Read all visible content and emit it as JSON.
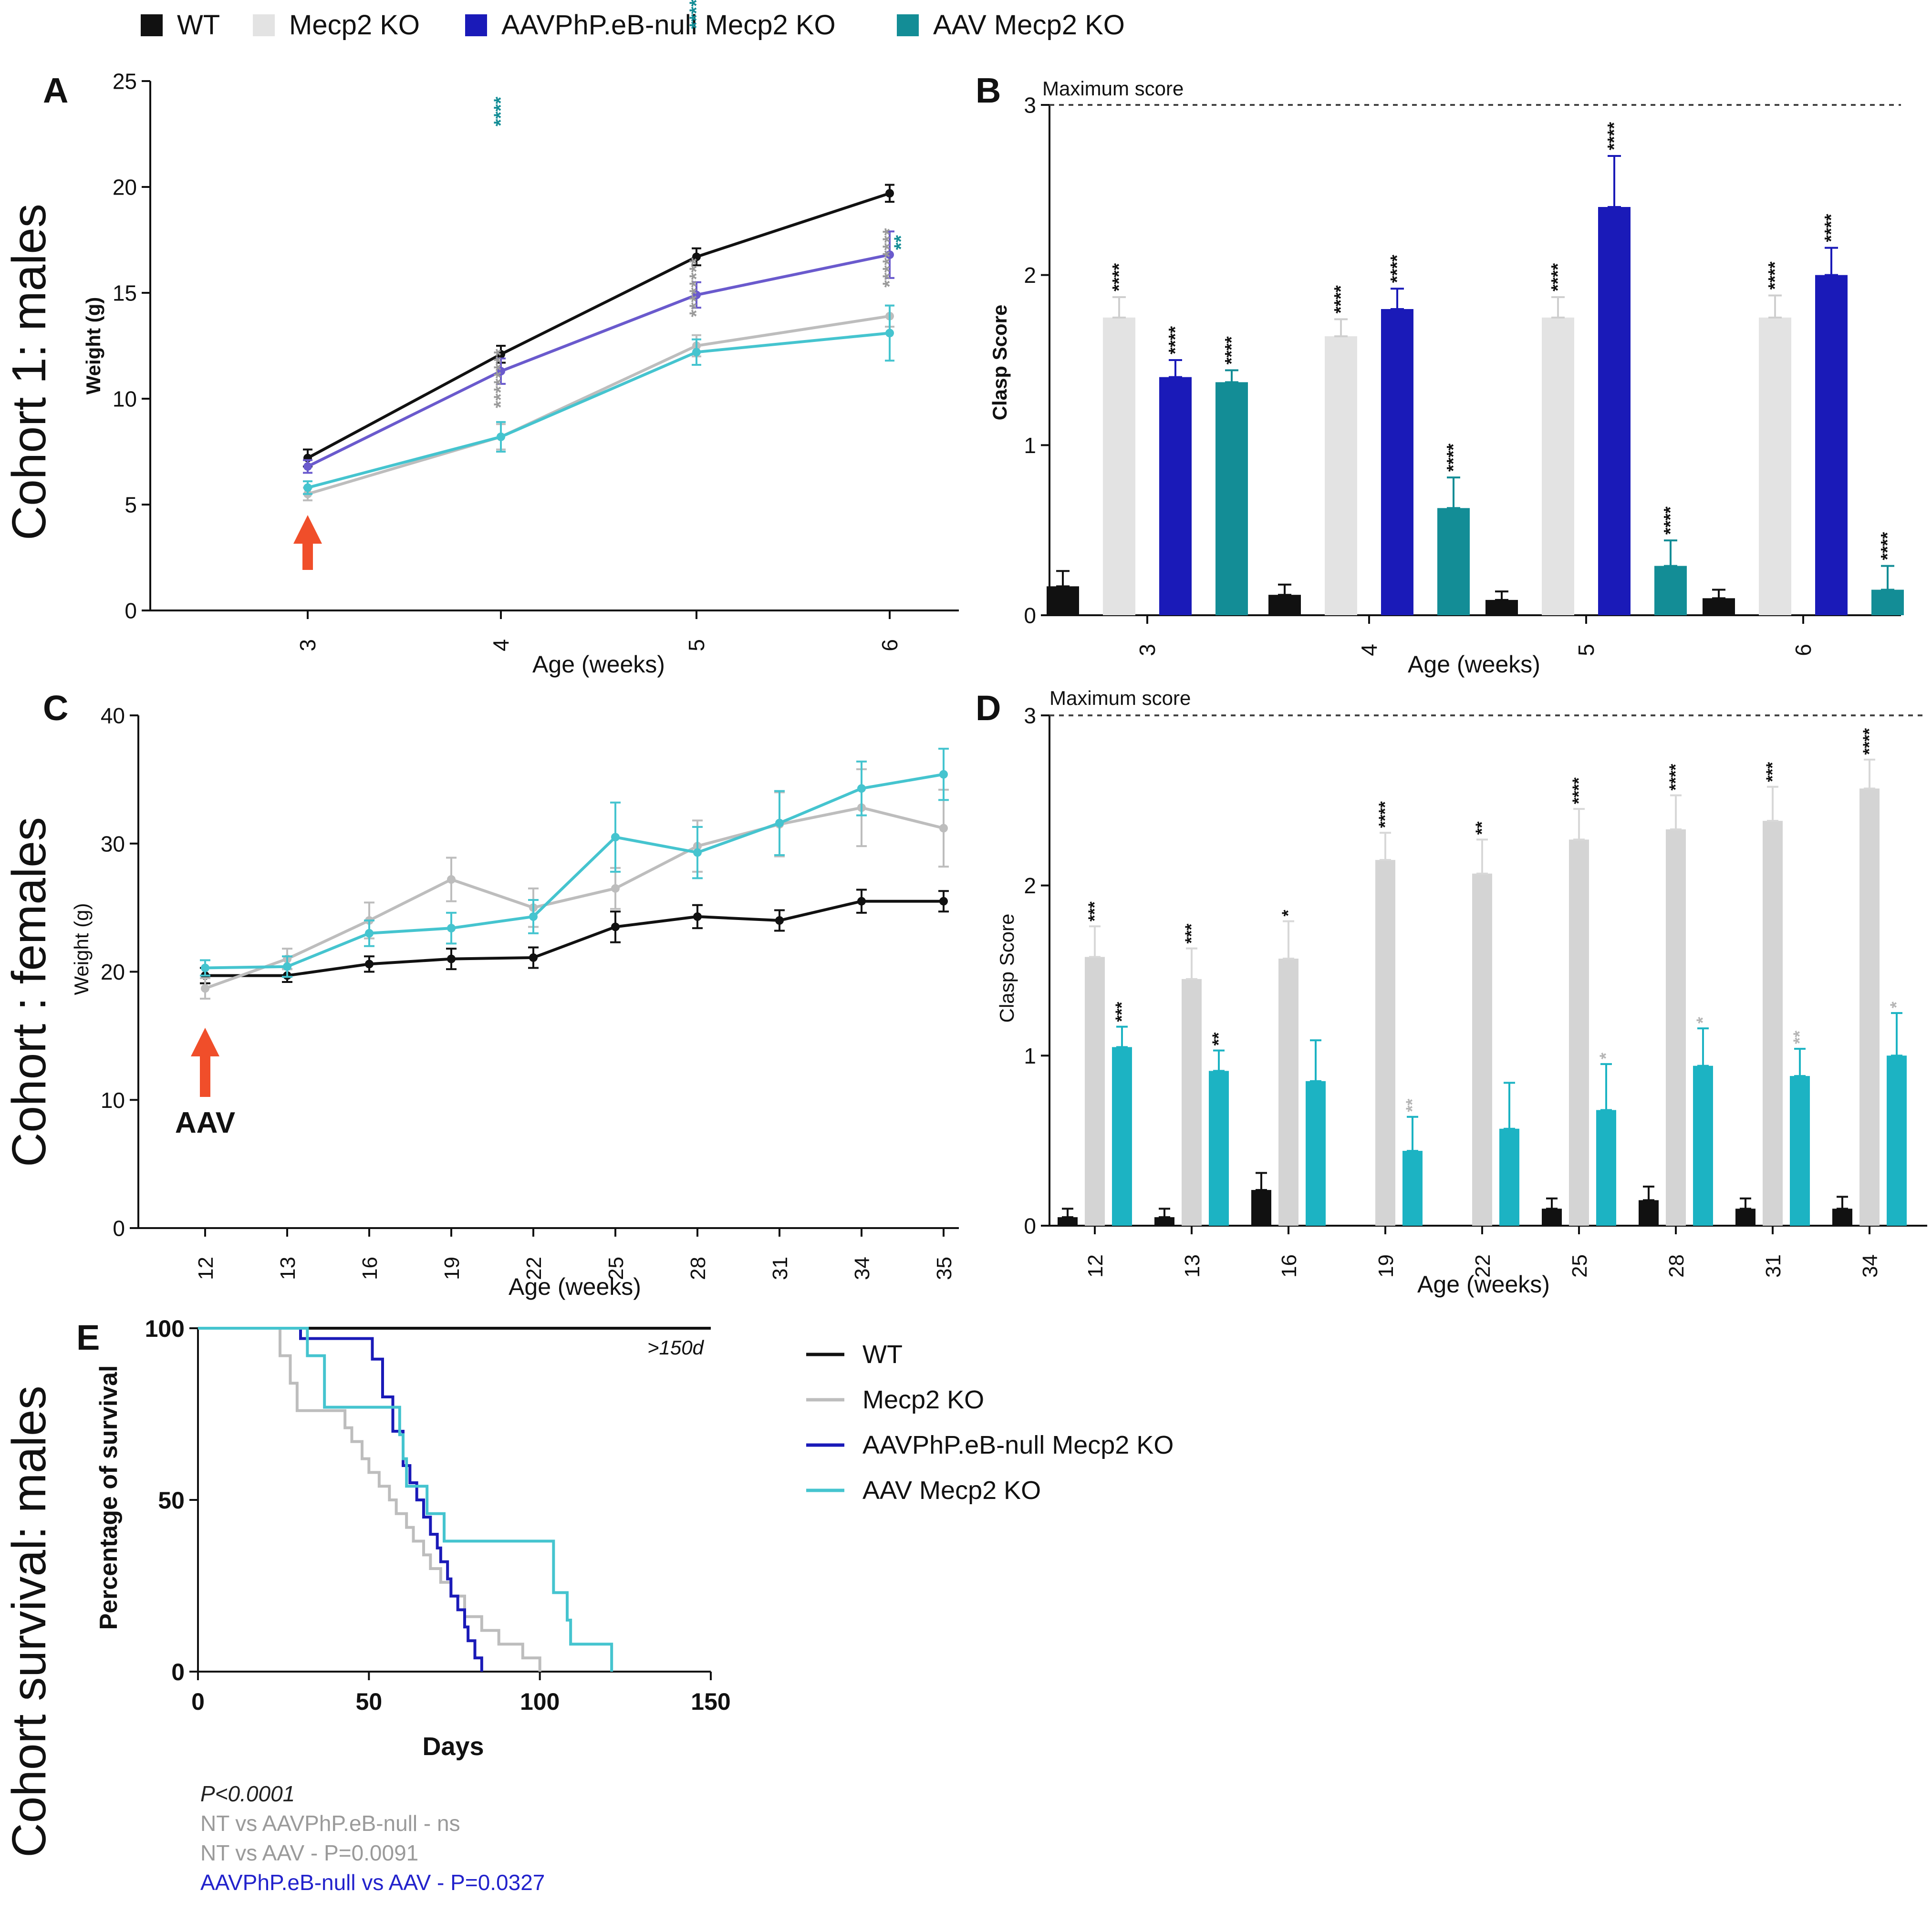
{
  "colors": {
    "wt": "#111111",
    "ko": "#e3e3e3",
    "ko_line": "#bdbdbd",
    "null": "#1a1ab8",
    "null_line": "#6a5acd",
    "aav": "#138d96",
    "aav_line": "#45c4cf",
    "aav_d": "#1cb3c3",
    "arrow": "#f04e2a",
    "gray_text": "#9a9a9a",
    "blue_text": "#2222cc"
  },
  "legend_top": {
    "items": [
      {
        "label": "WT",
        "color_key": "wt"
      },
      {
        "label": "Mecp2 KO",
        "color_key": "ko"
      },
      {
        "label": "AAVPhP.eB-null Mecp2 KO",
        "color_key": "null"
      },
      {
        "label": "AAV Mecp2 KO",
        "color_key": "aav"
      }
    ]
  },
  "row_titles": [
    "Cohort 1: males",
    "Cohort : females",
    "Cohort survival: males"
  ],
  "chart_data": [
    {
      "panel": "A",
      "type": "line",
      "xlabel": "Age (weeks)",
      "ylabel": "Weight (g)",
      "categories": [
        "3",
        "4",
        "5",
        "6"
      ],
      "ylim": [
        0,
        25
      ],
      "yticks": [
        0,
        5,
        10,
        15,
        20,
        25
      ],
      "series": [
        {
          "name": "WT",
          "values": [
            7.2,
            12.1,
            16.7,
            19.7
          ],
          "err": [
            0.4,
            0.4,
            0.4,
            0.4
          ]
        },
        {
          "name": "Mecp2 KO",
          "values": [
            5.5,
            8.2,
            12.5,
            13.9
          ],
          "err": [
            0.3,
            0.6,
            0.5,
            0.5
          ]
        },
        {
          "name": "AAVPhP.eB-null Mecp2 KO",
          "values": [
            6.8,
            11.3,
            14.9,
            16.8
          ],
          "err": [
            0.3,
            0.6,
            0.6,
            1.1
          ]
        },
        {
          "name": "AAV Mecp2 KO",
          "values": [
            5.8,
            8.2,
            12.2,
            13.1
          ],
          "err": [
            0.3,
            0.7,
            0.6,
            1.3
          ]
        }
      ],
      "annotation": "Injection at 3 weeks (arrow)"
    },
    {
      "panel": "B",
      "type": "bar",
      "xlabel": "Age (weeks)",
      "ylabel": "Clasp Score",
      "categories": [
        "3",
        "4",
        "5",
        "6"
      ],
      "ylim": [
        0,
        3
      ],
      "yticks": [
        0,
        1,
        2,
        3
      ],
      "max_label": "Maximum score",
      "series": [
        {
          "name": "WT",
          "values": [
            0.17,
            0.12,
            0.09,
            0.1
          ],
          "err": [
            0.09,
            0.06,
            0.05,
            0.05
          ]
        },
        {
          "name": "Mecp2 KO",
          "values": [
            1.75,
            1.64,
            1.75,
            1.75
          ],
          "err": [
            0.12,
            0.1,
            0.12,
            0.13
          ]
        },
        {
          "name": "AAVPhP.eB-null Mecp2 KO",
          "values": [
            1.4,
            1.8,
            2.4,
            2.0
          ],
          "err": [
            0.1,
            0.12,
            0.3,
            0.16
          ]
        },
        {
          "name": "AAV Mecp2 KO",
          "values": [
            1.37,
            0.63,
            0.29,
            0.15
          ],
          "err": [
            0.07,
            0.18,
            0.15,
            0.14
          ]
        }
      ],
      "stars": [
        [
          "",
          "****",
          "****",
          "****"
        ],
        [
          "",
          "****",
          "****",
          "****"
        ],
        [
          "",
          "****",
          "****",
          "****"
        ],
        [
          "",
          "****",
          "****",
          "****"
        ]
      ]
    },
    {
      "panel": "C",
      "type": "line",
      "xlabel": "Age (weeks)",
      "ylabel": "Weight (g)",
      "categories": [
        "12",
        "13",
        "16",
        "19",
        "22",
        "25",
        "28",
        "31",
        "34",
        "35"
      ],
      "ylim": [
        0,
        40
      ],
      "yticks": [
        0,
        10,
        20,
        30,
        40
      ],
      "series": [
        {
          "name": "WT",
          "values": [
            19.7,
            19.7,
            20.6,
            21.0,
            21.1,
            23.5,
            24.3,
            24.0,
            25.5,
            25.5
          ],
          "err": [
            0.6,
            0.5,
            0.6,
            0.8,
            0.8,
            1.2,
            0.9,
            0.8,
            0.9,
            0.8
          ]
        },
        {
          "name": "Mecp2 KO",
          "values": [
            18.7,
            21.0,
            24.0,
            27.2,
            25.0,
            26.5,
            29.8,
            31.5,
            32.8,
            31.2
          ],
          "err": [
            0.8,
            0.8,
            1.4,
            1.7,
            1.5,
            1.6,
            2.0,
            2.5,
            3.0,
            3.0
          ]
        },
        {
          "name": "AAV Mecp2 KO",
          "values": [
            20.3,
            20.4,
            23.0,
            23.4,
            24.3,
            30.5,
            29.3,
            31.6,
            34.3,
            35.4
          ],
          "err": [
            0.6,
            0.8,
            1.0,
            1.2,
            1.3,
            2.7,
            2.0,
            2.5,
            2.1,
            2.0
          ]
        }
      ],
      "arrow_label": "AAV"
    },
    {
      "panel": "D",
      "type": "bar",
      "xlabel": "Age (weeks)",
      "ylabel": "Clasp Score",
      "categories": [
        "12",
        "13",
        "16",
        "19",
        "22",
        "25",
        "28",
        "31",
        "34"
      ],
      "ylim": [
        0,
        3
      ],
      "yticks": [
        0,
        1,
        2,
        3
      ],
      "max_label": "Maximum score",
      "series": [
        {
          "name": "WT",
          "values": [
            0.05,
            0.05,
            0.21,
            0.0,
            0.0,
            0.1,
            0.15,
            0.1,
            0.1
          ],
          "err": [
            0.05,
            0.05,
            0.1,
            0,
            0,
            0.06,
            0.08,
            0.06,
            0.07
          ]
        },
        {
          "name": "Mecp2 KO",
          "values": [
            1.58,
            1.45,
            1.57,
            2.15,
            2.07,
            2.27,
            2.33,
            2.38,
            2.57
          ],
          "err": [
            0.18,
            0.18,
            0.22,
            0.16,
            0.2,
            0.18,
            0.2,
            0.2,
            0.17
          ]
        },
        {
          "name": "AAV Mecp2 KO",
          "values": [
            1.05,
            0.91,
            0.85,
            0.44,
            0.57,
            0.68,
            0.94,
            0.88,
            1.0
          ],
          "err": [
            0.12,
            0.12,
            0.24,
            0.2,
            0.27,
            0.27,
            0.22,
            0.16,
            0.25
          ]
        }
      ],
      "ko_stars": [
        "***",
        "***",
        "*",
        "****",
        "**",
        "****",
        "****",
        "***",
        "****"
      ],
      "aav_stars": [
        "***",
        "**",
        "",
        "**",
        "",
        "*",
        "*",
        "**",
        "*"
      ]
    },
    {
      "panel": "E",
      "type": "line",
      "xlabel": "Days",
      "ylabel": "Percentage of survival",
      "xlim": [
        0,
        150
      ],
      "ylim": [
        0,
        100
      ],
      "xticks": [
        0,
        50,
        100,
        150
      ],
      "yticks": [
        0,
        50,
        100
      ],
      "wt_label": ">150d",
      "series": [
        {
          "name": "WT",
          "steps": [
            [
              0,
              100
            ],
            [
              150,
              100
            ]
          ]
        },
        {
          "name": "Mecp2 KO",
          "steps": [
            [
              0,
              100
            ],
            [
              22,
              100
            ],
            [
              24,
              92
            ],
            [
              27,
              84
            ],
            [
              29,
              76
            ],
            [
              40,
              76
            ],
            [
              43,
              71
            ],
            [
              45,
              67
            ],
            [
              48,
              62
            ],
            [
              50,
              58
            ],
            [
              53,
              54
            ],
            [
              56,
              50
            ],
            [
              58,
              46
            ],
            [
              61,
              42
            ],
            [
              63,
              38
            ],
            [
              66,
              34
            ],
            [
              68,
              30
            ],
            [
              71,
              26
            ],
            [
              74,
              22
            ],
            [
              78,
              16
            ],
            [
              83,
              12
            ],
            [
              88,
              8
            ],
            [
              95,
              4
            ],
            [
              100,
              0
            ]
          ]
        },
        {
          "name": "AAVPhP.eB-null Mecp2 KO",
          "steps": [
            [
              0,
              100
            ],
            [
              28,
              100
            ],
            [
              30,
              97
            ],
            [
              48,
              97
            ],
            [
              51,
              91
            ],
            [
              54,
              80
            ],
            [
              57,
              70
            ],
            [
              60,
              60
            ],
            [
              62,
              55
            ],
            [
              64,
              50
            ],
            [
              66,
              45
            ],
            [
              68,
              40
            ],
            [
              70,
              36
            ],
            [
              71,
              32
            ],
            [
              73,
              27
            ],
            [
              74,
              22
            ],
            [
              76,
              18
            ],
            [
              78,
              13
            ],
            [
              79,
              9
            ],
            [
              81,
              4
            ],
            [
              83,
              0
            ]
          ]
        },
        {
          "name": "AAV Mecp2 KO",
          "steps": [
            [
              0,
              100
            ],
            [
              30,
              100
            ],
            [
              32,
              92
            ],
            [
              37,
              77
            ],
            [
              54,
              77
            ],
            [
              59,
              69
            ],
            [
              60,
              62
            ],
            [
              61,
              54
            ],
            [
              67,
              46
            ],
            [
              72,
              38
            ],
            [
              102,
              38
            ],
            [
              104,
              23
            ],
            [
              108,
              15
            ],
            [
              109,
              8
            ],
            [
              121,
              8
            ],
            [
              121,
              0
            ]
          ]
        }
      ],
      "legend": [
        {
          "label": "WT",
          "color_key": "wt"
        },
        {
          "label": "Mecp2 KO",
          "color_key": "ko_line"
        },
        {
          "label": "AAVPhP.eB-null Mecp2 KO",
          "color_key": "null"
        },
        {
          "label": "AAV Mecp2 KO",
          "color_key": "aav_line"
        }
      ]
    }
  ],
  "stats": {
    "overall": "P<0.0001",
    "nt_vs_null": "NT vs AAVPhP.eB-null - ns",
    "nt_vs_aav": "NT vs AAV - P=0.0091",
    "null_vs_aav": "AAVPhP.eB-null vs AAV - P=0.0327"
  }
}
